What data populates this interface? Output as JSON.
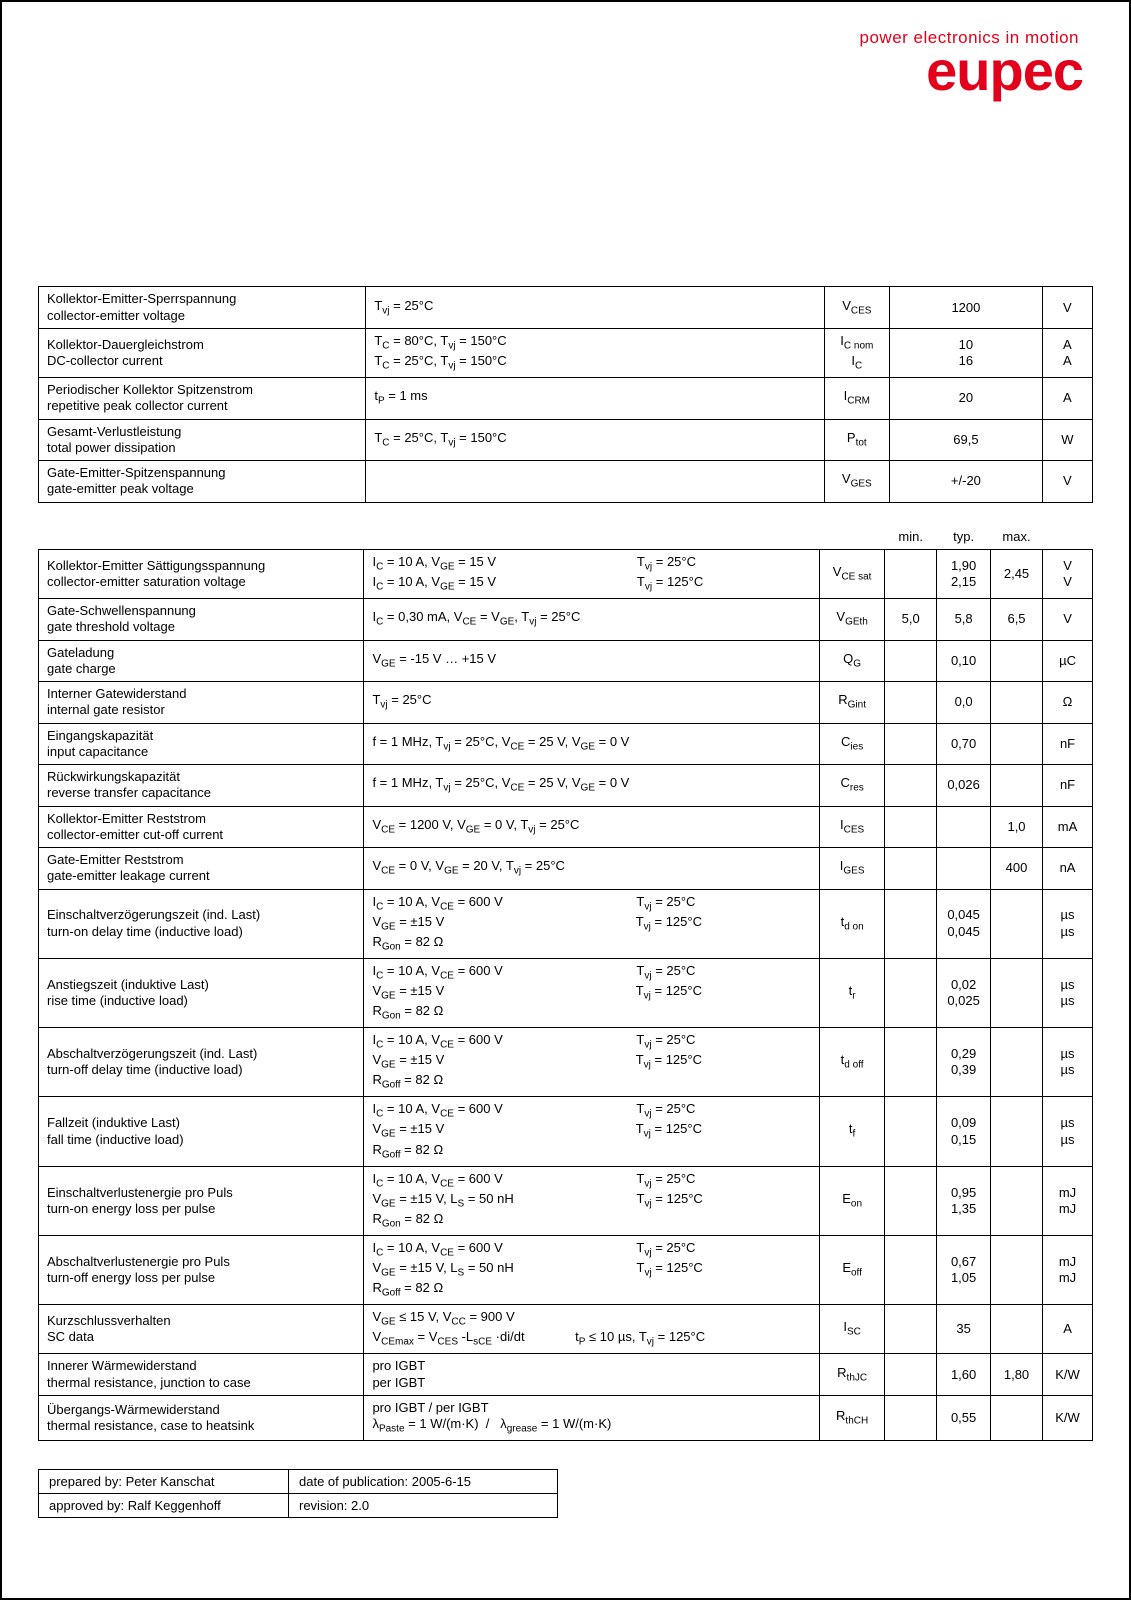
{
  "brand": {
    "tagline": "power electronics in motion",
    "name": "eupec",
    "color": "#e2001a"
  },
  "table1": {
    "rows": [
      {
        "de": "Kollektor-Emitter-Sperrspannung",
        "en": "collector-emitter voltage",
        "cond": "T<sub>vj</sub> = 25°C",
        "sym": "V<sub>CES</sub>",
        "val": "1200",
        "unit": "V"
      },
      {
        "de": "Kollektor-Dauergleichstrom",
        "en": "DC-collector current",
        "cond": "T<sub>C</sub> = 80°C, T<sub>vj</sub> = 150°C<br>T<sub>C</sub> = 25°C, T<sub>vj</sub> = 150°C",
        "sym": "I<sub>C nom</sub><br>I<sub>C</sub>",
        "val": "10<br>16",
        "unit": "A<br>A"
      },
      {
        "de": "Periodischer Kollektor Spitzenstrom",
        "en": "repetitive peak collector current",
        "cond": "t<sub>P</sub> = 1 ms",
        "sym": "I<sub>CRM</sub>",
        "val": "20",
        "unit": "A"
      },
      {
        "de": "Gesamt-Verlustleistung",
        "en": "total power dissipation",
        "cond": "T<sub>C</sub> = 25°C, T<sub>vj</sub> = 150°C",
        "sym": "P<sub>tot</sub>",
        "val": "69,5",
        "unit": "W"
      },
      {
        "de": "Gate-Emitter-Spitzenspannung",
        "en": "gate-emitter peak voltage",
        "cond": "",
        "sym": "V<sub>GES</sub>",
        "val": "+/-20",
        "unit": "V"
      }
    ]
  },
  "table2": {
    "head": {
      "min": "min.",
      "typ": "typ.",
      "max": "max."
    },
    "rows": [
      {
        "de": "Kollektor-Emitter Sättigungsspannung",
        "en": "collector-emitter saturation voltage",
        "cond": "I<sub>C</sub> = 10 A, V<sub>GE</sub> = 15 V&nbsp;&nbsp;&nbsp;&nbsp;&nbsp;&nbsp;&nbsp;&nbsp;&nbsp;&nbsp;&nbsp;&nbsp;&nbsp;&nbsp;&nbsp;&nbsp;&nbsp;&nbsp;&nbsp;&nbsp;&nbsp;&nbsp;&nbsp;&nbsp;&nbsp;&nbsp;&nbsp;&nbsp;&nbsp;&nbsp;&nbsp;&nbsp;&nbsp;&nbsp;&nbsp;&nbsp;&nbsp;&nbsp;&nbsp;T<sub>vj</sub> = 25°C<br>I<sub>C</sub> = 10 A, V<sub>GE</sub> = 15 V&nbsp;&nbsp;&nbsp;&nbsp;&nbsp;&nbsp;&nbsp;&nbsp;&nbsp;&nbsp;&nbsp;&nbsp;&nbsp;&nbsp;&nbsp;&nbsp;&nbsp;&nbsp;&nbsp;&nbsp;&nbsp;&nbsp;&nbsp;&nbsp;&nbsp;&nbsp;&nbsp;&nbsp;&nbsp;&nbsp;&nbsp;&nbsp;&nbsp;&nbsp;&nbsp;&nbsp;&nbsp;&nbsp;&nbsp;T<sub>vj</sub> = 125°C",
        "sym": "V<sub>CE sat</sub>",
        "min": "",
        "typ": "1,90<br>2,15",
        "max": "2,45",
        "unit": "V<br>V"
      },
      {
        "de": "Gate-Schwellenspannung",
        "en": "gate threshold voltage",
        "cond": "I<sub>C</sub> = 0,30 mA, V<sub>CE</sub> = V<sub>GE</sub>, T<sub>vj</sub> = 25°C",
        "sym": "V<sub>GEth</sub>",
        "min": "5,0",
        "typ": "5,8",
        "max": "6,5",
        "unit": "V"
      },
      {
        "de": "Gateladung",
        "en": "gate charge",
        "cond": "V<sub>GE</sub> = -15 V … +15 V",
        "sym": "Q<sub>G</sub>",
        "min": "",
        "typ": "0,10",
        "max": "",
        "unit": "µC"
      },
      {
        "de": "Interner Gatewiderstand",
        "en": "internal gate resistor",
        "cond": "T<sub>vj</sub> = 25°C",
        "sym": "R<sub>Gint</sub>",
        "min": "",
        "typ": "0,0",
        "max": "",
        "unit": "Ω"
      },
      {
        "de": "Eingangskapazität",
        "en": "input capacitance",
        "cond": "f = 1 MHz, T<sub>vj</sub> = 25°C, V<sub>CE</sub> = 25 V, V<sub>GE</sub> = 0 V",
        "sym": "C<sub>ies</sub>",
        "min": "",
        "typ": "0,70",
        "max": "",
        "unit": "nF"
      },
      {
        "de": "Rückwirkungskapazität",
        "en": "reverse transfer capacitance",
        "cond": "f = 1 MHz, T<sub>vj</sub> = 25°C, V<sub>CE</sub> = 25 V, V<sub>GE</sub> = 0 V",
        "sym": "C<sub>res</sub>",
        "min": "",
        "typ": "0,026",
        "max": "",
        "unit": "nF"
      },
      {
        "de": "Kollektor-Emitter Reststrom",
        "en": "collector-emitter cut-off current",
        "cond": "V<sub>CE</sub> = 1200 V, V<sub>GE</sub> = 0 V, T<sub>vj</sub> = 25°C",
        "sym": "I<sub>CES</sub>",
        "min": "",
        "typ": "",
        "max": "1,0",
        "unit": "mA"
      },
      {
        "de": "Gate-Emitter Reststrom",
        "en": "gate-emitter leakage current",
        "cond": "V<sub>CE</sub> = 0 V, V<sub>GE</sub> = 20 V, T<sub>vj</sub> = 25°C",
        "sym": "I<sub>GES</sub>",
        "min": "",
        "typ": "",
        "max": "400",
        "unit": "nA"
      },
      {
        "de": "Einschaltverzögerungszeit (ind. Last)",
        "en": "turn-on delay time (inductive load)",
        "cond": "I<sub>C</sub> = 10 A, V<sub>CE</sub> = 600 V&nbsp;&nbsp;&nbsp;&nbsp;&nbsp;&nbsp;&nbsp;&nbsp;&nbsp;&nbsp;&nbsp;&nbsp;&nbsp;&nbsp;&nbsp;&nbsp;&nbsp;&nbsp;&nbsp;&nbsp;&nbsp;&nbsp;&nbsp;&nbsp;&nbsp;&nbsp;&nbsp;&nbsp;&nbsp;&nbsp;&nbsp;&nbsp;&nbsp;&nbsp;&nbsp;&nbsp;&nbsp;T<sub>vj</sub> = 25°C<br>V<sub>GE</sub> = ±15 V&nbsp;&nbsp;&nbsp;&nbsp;&nbsp;&nbsp;&nbsp;&nbsp;&nbsp;&nbsp;&nbsp;&nbsp;&nbsp;&nbsp;&nbsp;&nbsp;&nbsp;&nbsp;&nbsp;&nbsp;&nbsp;&nbsp;&nbsp;&nbsp;&nbsp;&nbsp;&nbsp;&nbsp;&nbsp;&nbsp;&nbsp;&nbsp;&nbsp;&nbsp;&nbsp;&nbsp;&nbsp;&nbsp;&nbsp;&nbsp;&nbsp;&nbsp;&nbsp;&nbsp;&nbsp;&nbsp;&nbsp;&nbsp;&nbsp;&nbsp;&nbsp;&nbsp;&nbsp;T<sub>vj</sub> = 125°C<br>R<sub>Gon</sub> = 82 Ω",
        "sym": "t<sub>d on</sub>",
        "min": "",
        "typ": "0,045<br>0,045",
        "max": "",
        "unit": "µs<br>µs"
      },
      {
        "de": "Anstiegszeit (induktive Last)",
        "en": "rise time (inductive load)",
        "cond": "I<sub>C</sub> = 10 A, V<sub>CE</sub> = 600 V&nbsp;&nbsp;&nbsp;&nbsp;&nbsp;&nbsp;&nbsp;&nbsp;&nbsp;&nbsp;&nbsp;&nbsp;&nbsp;&nbsp;&nbsp;&nbsp;&nbsp;&nbsp;&nbsp;&nbsp;&nbsp;&nbsp;&nbsp;&nbsp;&nbsp;&nbsp;&nbsp;&nbsp;&nbsp;&nbsp;&nbsp;&nbsp;&nbsp;&nbsp;&nbsp;&nbsp;&nbsp;T<sub>vj</sub> = 25°C<br>V<sub>GE</sub> = ±15 V&nbsp;&nbsp;&nbsp;&nbsp;&nbsp;&nbsp;&nbsp;&nbsp;&nbsp;&nbsp;&nbsp;&nbsp;&nbsp;&nbsp;&nbsp;&nbsp;&nbsp;&nbsp;&nbsp;&nbsp;&nbsp;&nbsp;&nbsp;&nbsp;&nbsp;&nbsp;&nbsp;&nbsp;&nbsp;&nbsp;&nbsp;&nbsp;&nbsp;&nbsp;&nbsp;&nbsp;&nbsp;&nbsp;&nbsp;&nbsp;&nbsp;&nbsp;&nbsp;&nbsp;&nbsp;&nbsp;&nbsp;&nbsp;&nbsp;&nbsp;&nbsp;&nbsp;&nbsp;T<sub>vj</sub> = 125°C<br>R<sub>Gon</sub> = 82 Ω",
        "sym": "t<sub>r</sub>",
        "min": "",
        "typ": "0,02<br>0,025",
        "max": "",
        "unit": "µs<br>µs"
      },
      {
        "de": "Abschaltverzögerungszeit (ind. Last)",
        "en": "turn-off delay time (inductive load)",
        "cond": "I<sub>C</sub> = 10 A, V<sub>CE</sub> = 600 V&nbsp;&nbsp;&nbsp;&nbsp;&nbsp;&nbsp;&nbsp;&nbsp;&nbsp;&nbsp;&nbsp;&nbsp;&nbsp;&nbsp;&nbsp;&nbsp;&nbsp;&nbsp;&nbsp;&nbsp;&nbsp;&nbsp;&nbsp;&nbsp;&nbsp;&nbsp;&nbsp;&nbsp;&nbsp;&nbsp;&nbsp;&nbsp;&nbsp;&nbsp;&nbsp;&nbsp;&nbsp;T<sub>vj</sub> = 25°C<br>V<sub>GE</sub> = ±15 V&nbsp;&nbsp;&nbsp;&nbsp;&nbsp;&nbsp;&nbsp;&nbsp;&nbsp;&nbsp;&nbsp;&nbsp;&nbsp;&nbsp;&nbsp;&nbsp;&nbsp;&nbsp;&nbsp;&nbsp;&nbsp;&nbsp;&nbsp;&nbsp;&nbsp;&nbsp;&nbsp;&nbsp;&nbsp;&nbsp;&nbsp;&nbsp;&nbsp;&nbsp;&nbsp;&nbsp;&nbsp;&nbsp;&nbsp;&nbsp;&nbsp;&nbsp;&nbsp;&nbsp;&nbsp;&nbsp;&nbsp;&nbsp;&nbsp;&nbsp;&nbsp;&nbsp;&nbsp;T<sub>vj</sub> = 125°C<br>R<sub>Goff</sub> = 82 Ω",
        "sym": "t<sub>d off</sub>",
        "min": "",
        "typ": "0,29<br>0,39",
        "max": "",
        "unit": "µs<br>µs"
      },
      {
        "de": "Fallzeit (induktive Last)",
        "en": "fall time (inductive load)",
        "cond": "I<sub>C</sub> = 10 A, V<sub>CE</sub> = 600 V&nbsp;&nbsp;&nbsp;&nbsp;&nbsp;&nbsp;&nbsp;&nbsp;&nbsp;&nbsp;&nbsp;&nbsp;&nbsp;&nbsp;&nbsp;&nbsp;&nbsp;&nbsp;&nbsp;&nbsp;&nbsp;&nbsp;&nbsp;&nbsp;&nbsp;&nbsp;&nbsp;&nbsp;&nbsp;&nbsp;&nbsp;&nbsp;&nbsp;&nbsp;&nbsp;&nbsp;&nbsp;T<sub>vj</sub> = 25°C<br>V<sub>GE</sub> = ±15 V&nbsp;&nbsp;&nbsp;&nbsp;&nbsp;&nbsp;&nbsp;&nbsp;&nbsp;&nbsp;&nbsp;&nbsp;&nbsp;&nbsp;&nbsp;&nbsp;&nbsp;&nbsp;&nbsp;&nbsp;&nbsp;&nbsp;&nbsp;&nbsp;&nbsp;&nbsp;&nbsp;&nbsp;&nbsp;&nbsp;&nbsp;&nbsp;&nbsp;&nbsp;&nbsp;&nbsp;&nbsp;&nbsp;&nbsp;&nbsp;&nbsp;&nbsp;&nbsp;&nbsp;&nbsp;&nbsp;&nbsp;&nbsp;&nbsp;&nbsp;&nbsp;&nbsp;&nbsp;T<sub>vj</sub> = 125°C<br>R<sub>Goff</sub> = 82 Ω",
        "sym": "t<sub>f</sub>",
        "min": "",
        "typ": "0,09<br>0,15",
        "max": "",
        "unit": "µs<br>µs"
      },
      {
        "de": "Einschaltverlustenergie pro Puls",
        "en": "turn-on energy loss per pulse",
        "cond": "I<sub>C</sub> = 10 A, V<sub>CE</sub> = 600 V&nbsp;&nbsp;&nbsp;&nbsp;&nbsp;&nbsp;&nbsp;&nbsp;&nbsp;&nbsp;&nbsp;&nbsp;&nbsp;&nbsp;&nbsp;&nbsp;&nbsp;&nbsp;&nbsp;&nbsp;&nbsp;&nbsp;&nbsp;&nbsp;&nbsp;&nbsp;&nbsp;&nbsp;&nbsp;&nbsp;&nbsp;&nbsp;&nbsp;&nbsp;&nbsp;&nbsp;&nbsp;T<sub>vj</sub> = 25°C<br>V<sub>GE</sub> = ±15 V, L<sub>S</sub> = 50 nH&nbsp;&nbsp;&nbsp;&nbsp;&nbsp;&nbsp;&nbsp;&nbsp;&nbsp;&nbsp;&nbsp;&nbsp;&nbsp;&nbsp;&nbsp;&nbsp;&nbsp;&nbsp;&nbsp;&nbsp;&nbsp;&nbsp;&nbsp;&nbsp;&nbsp;&nbsp;&nbsp;&nbsp;&nbsp;&nbsp;&nbsp;&nbsp;&nbsp;&nbsp;T<sub>vj</sub> = 125°C<br>R<sub>Gon</sub> = 82 Ω",
        "sym": "E<sub>on</sub>",
        "min": "",
        "typ": "0,95<br>1,35",
        "max": "",
        "unit": "mJ<br>mJ"
      },
      {
        "de": "Abschaltverlustenergie pro Puls",
        "en": "turn-off energy loss per pulse",
        "cond": "I<sub>C</sub> = 10 A, V<sub>CE</sub> = 600 V&nbsp;&nbsp;&nbsp;&nbsp;&nbsp;&nbsp;&nbsp;&nbsp;&nbsp;&nbsp;&nbsp;&nbsp;&nbsp;&nbsp;&nbsp;&nbsp;&nbsp;&nbsp;&nbsp;&nbsp;&nbsp;&nbsp;&nbsp;&nbsp;&nbsp;&nbsp;&nbsp;&nbsp;&nbsp;&nbsp;&nbsp;&nbsp;&nbsp;&nbsp;&nbsp;&nbsp;&nbsp;T<sub>vj</sub> = 25°C<br>V<sub>GE</sub> = ±15 V, L<sub>S</sub> = 50 nH&nbsp;&nbsp;&nbsp;&nbsp;&nbsp;&nbsp;&nbsp;&nbsp;&nbsp;&nbsp;&nbsp;&nbsp;&nbsp;&nbsp;&nbsp;&nbsp;&nbsp;&nbsp;&nbsp;&nbsp;&nbsp;&nbsp;&nbsp;&nbsp;&nbsp;&nbsp;&nbsp;&nbsp;&nbsp;&nbsp;&nbsp;&nbsp;&nbsp;&nbsp;T<sub>vj</sub> = 125°C<br>R<sub>Goff</sub> = 82 Ω",
        "sym": "E<sub>off</sub>",
        "min": "",
        "typ": "0,67<br>1,05",
        "max": "",
        "unit": "mJ<br>mJ"
      },
      {
        "de": "Kurzschlussverhalten",
        "en": "SC data",
        "cond": "V<sub>GE</sub> ≤ 15 V, V<sub>CC</sub> = 900 V<br>V<sub>CEmax</sub> = V<sub>CES</sub> -L<sub>sCE</sub> ·di/dt&nbsp;&nbsp;&nbsp;&nbsp;&nbsp;&nbsp;&nbsp;&nbsp;&nbsp;&nbsp;&nbsp;&nbsp;&nbsp;&nbsp;t<sub>P</sub> ≤ 10 µs, T<sub>vj</sub> = 125°C",
        "sym": "I<sub>SC</sub>",
        "min": "",
        "typ": "35",
        "max": "",
        "unit": "A"
      },
      {
        "de": "Innerer Wärmewiderstand",
        "en": "thermal resistance, junction to case",
        "cond": "pro IGBT<br>per IGBT",
        "sym": "R<sub>thJC</sub>",
        "min": "",
        "typ": "1,60",
        "max": "1,80",
        "unit": "K/W"
      },
      {
        "de": "Übergangs-Wärmewiderstand",
        "en": "thermal resistance, case to heatsink",
        "cond": "pro IGBT / per IGBT<br>λ<sub>Paste</sub> = 1 W/(m·K)&nbsp;&nbsp;/&nbsp;&nbsp;&nbsp;λ<sub>grease</sub> = 1 W/(m·K)",
        "sym": "R<sub>thCH</sub>",
        "min": "",
        "typ": "0,55",
        "max": "",
        "unit": "K/W"
      }
    ]
  },
  "meta": {
    "prep_l": "prepared by: Peter Kanschat",
    "prep_r": "date of publication: 2005-6-15",
    "appr_l": "approved by: Ralf Keggenhoff",
    "appr_r": "revision: 2.0"
  }
}
